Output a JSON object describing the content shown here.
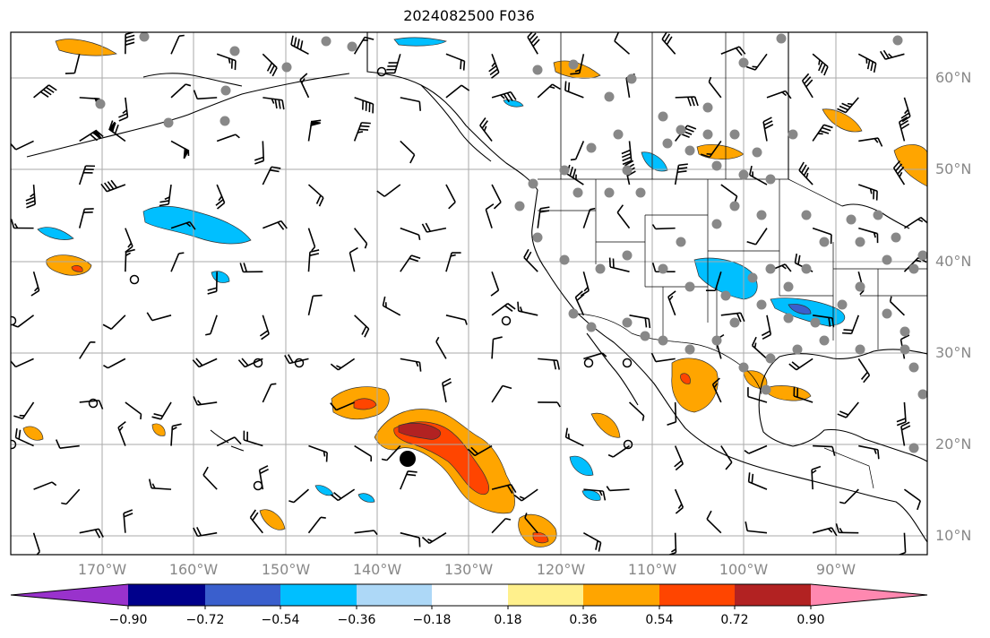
{
  "title": "2024082500 F036",
  "map": {
    "projection": "PlateCarree",
    "lon_range": [
      -180,
      -80
    ],
    "lat_range": [
      8,
      65
    ],
    "lat_labels": [
      "60°N",
      "50°N",
      "40°N",
      "30°N",
      "20°N",
      "10°N"
    ],
    "lon_labels": [
      "170°W",
      "160°W",
      "150°W",
      "140°W",
      "130°W",
      "120°W",
      "110°W",
      "100°W",
      "90°W"
    ],
    "gridline_color": "#aaaaaa",
    "wind_barbs": "black",
    "station_marker_color": "#888888",
    "storm_center_marker": "black"
  },
  "colorbar": {
    "tick_labels": [
      "−0.90",
      "−0.72",
      "−0.54",
      "−0.36",
      "−0.18",
      "0.18",
      "0.36",
      "0.54",
      "0.72",
      "0.90"
    ],
    "colors": [
      "#9932cc",
      "#00008b",
      "#3a5fcd",
      "#00bfff",
      "#add8f7",
      "#ffffff",
      "#fff08c",
      "#ffa500",
      "#ff4500",
      "#b22222",
      "#ff88b0"
    ]
  }
}
